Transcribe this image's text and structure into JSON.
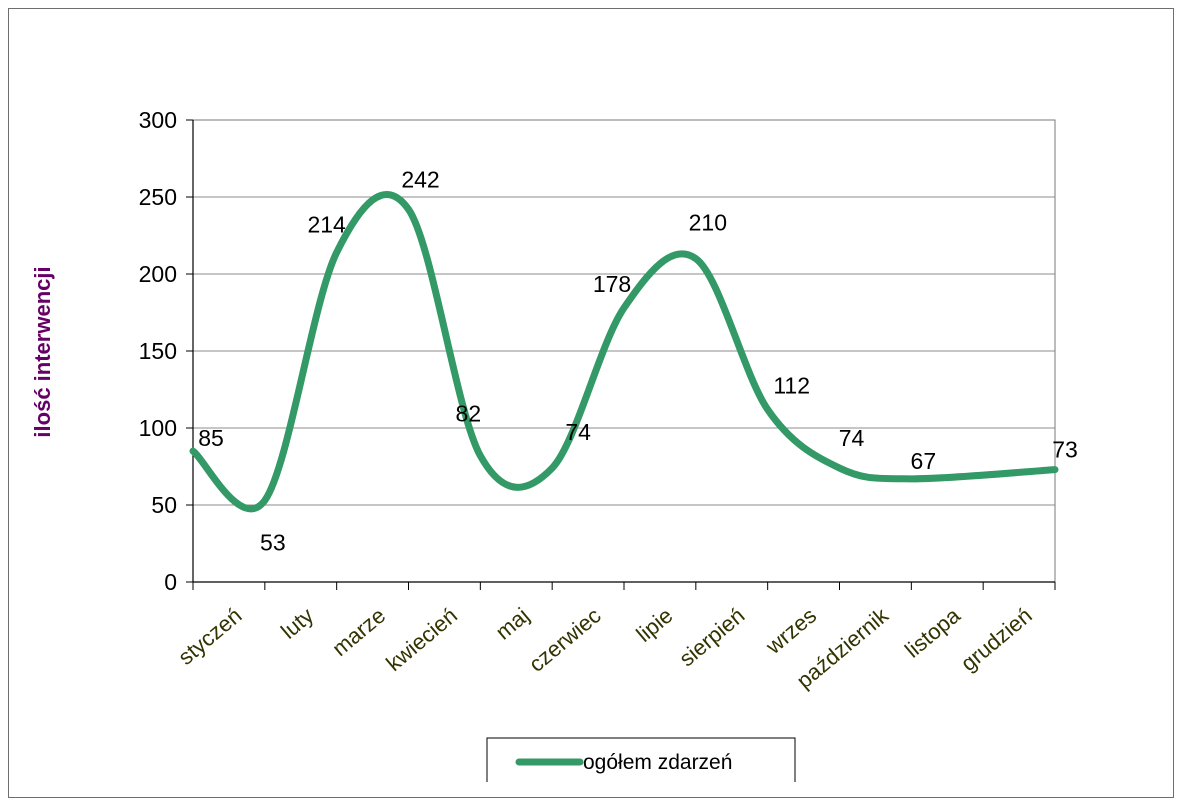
{
  "chart_data": {
    "type": "line",
    "categories": [
      "styczeń",
      "luty",
      "marzec",
      "kwiecień",
      "maj",
      "czerwiec",
      "lipiec",
      "sierpień",
      "wrzesień",
      "październik",
      "listopad",
      "grudzień"
    ],
    "category_labels_visible": [
      "styczeń",
      "luty",
      "marze",
      "kwiecień",
      "maj",
      "czerwiec",
      "lipie",
      "sierpień",
      "wrzes",
      "październik",
      "listopa",
      "grudzień"
    ],
    "series": [
      {
        "name": "ogółem zdarzeń",
        "values": [
          85,
          53,
          214,
          242,
          82,
          74,
          178,
          210,
          112,
          74,
          67,
          73
        ],
        "color": "#339966"
      }
    ],
    "title": "",
    "xlabel": "",
    "ylabel": "ilość interwencji",
    "ylim": [
      0,
      300
    ],
    "yticks": [
      0,
      50,
      100,
      150,
      200,
      250,
      300
    ],
    "grid": true,
    "smooth": true,
    "legend": "bottom-center"
  }
}
